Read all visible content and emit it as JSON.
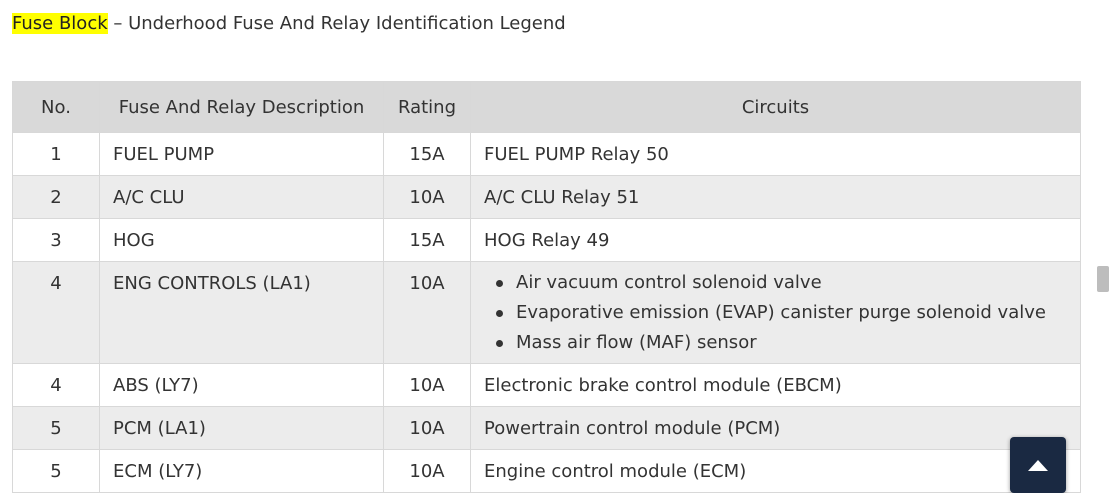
{
  "heading": {
    "highlight": "Fuse Block",
    "separator": " – ",
    "title": "Underhood Fuse And Relay Identification Legend"
  },
  "table": {
    "headers": {
      "no": "No.",
      "description": "Fuse And Relay Description",
      "rating": "Rating",
      "circuits": "Circuits"
    },
    "rows": [
      {
        "no": "1",
        "description": "FUEL PUMP",
        "rating": "15A",
        "circuits": "FUEL PUMP Relay 50"
      },
      {
        "no": "2",
        "description": "A/C CLU",
        "rating": "10A",
        "circuits": "A/C CLU Relay 51"
      },
      {
        "no": "3",
        "description": "HOG",
        "rating": "15A",
        "circuits": "HOG Relay 49"
      },
      {
        "no": "4",
        "description": "ENG CONTROLS (LA1)",
        "rating": "10A",
        "circuit_items": [
          "Air vacuum control solenoid valve",
          "Evaporative emission (EVAP) canister purge solenoid valve",
          "Mass air flow (MAF) sensor"
        ]
      },
      {
        "no": "4",
        "description": "ABS (LY7)",
        "rating": "10A",
        "circuits": "Electronic brake control module (EBCM)"
      },
      {
        "no": "5",
        "description": "PCM (LA1)",
        "rating": "10A",
        "circuits": "Powertrain control module (PCM)"
      },
      {
        "no": "5",
        "description": "ECM (LY7)",
        "rating": "10A",
        "circuits": "Engine control module (ECM)"
      }
    ]
  },
  "controls": {
    "back_to_top_icon": "arrow-up-icon"
  },
  "colors": {
    "highlight": "#ffff00",
    "header_bg": "#d9d9d9",
    "stripe_bg": "#ececec",
    "button_bg": "#1a2942"
  }
}
